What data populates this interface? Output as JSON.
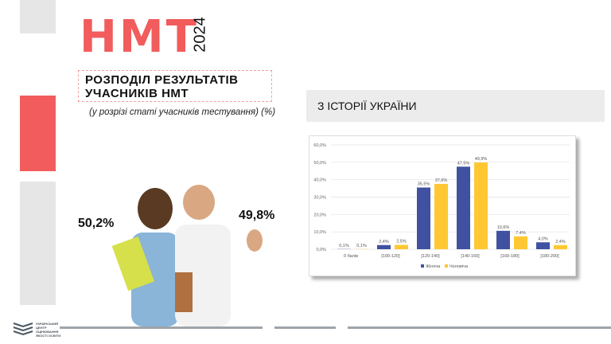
{
  "header": {
    "title": "НМТ",
    "year": "2024",
    "heading": "РОЗПОДІЛ РЕЗУЛЬТАТІВ УЧАСНИКІВ НМТ",
    "subtitle": "(у розрізі статі учасників тестування) (%)"
  },
  "banner": {
    "label": "З ІСТОРІЇ УКРАЇНИ"
  },
  "stats": {
    "female": "50,2%",
    "male": "49,8%"
  },
  "logo": {
    "text": "УКРАЇНСЬКИЙ ЦЕНТР ОЦІНЮВАННЯ ЯКОСТІ ОСВІТИ"
  },
  "colors": {
    "accent": "#f25c5c",
    "female": "#3f51a0",
    "male": "#ffc832",
    "gray": "#e6e6e6"
  },
  "chart_data": {
    "type": "bar",
    "categories": [
      "0 балів",
      "[100-120]",
      "[120-140]",
      "[140-160]",
      "[160-180]",
      "[180-200]"
    ],
    "series": [
      {
        "name": "Жіноча",
        "values": [
          0.1,
          2.4,
          35.5,
          47.5,
          10.6,
          4.0
        ],
        "labels": [
          "0,1%",
          "2,4%",
          "35,5%",
          "47,5%",
          "10,6%",
          "4,0%"
        ]
      },
      {
        "name": "Чоловіча",
        "values": [
          0.1,
          2.5,
          37.6,
          49.9,
          7.4,
          2.4
        ],
        "labels": [
          "0,1%",
          "2,5%",
          "37,6%",
          "49,9%",
          "7,4%",
          "2,4%"
        ]
      }
    ],
    "yticks": [
      "0,0%",
      "10,0%",
      "20,0%",
      "30,0%",
      "40,0%",
      "50,0%",
      "60,0%"
    ],
    "ylim": [
      0,
      60
    ],
    "grid": true,
    "legend": "bottom"
  }
}
